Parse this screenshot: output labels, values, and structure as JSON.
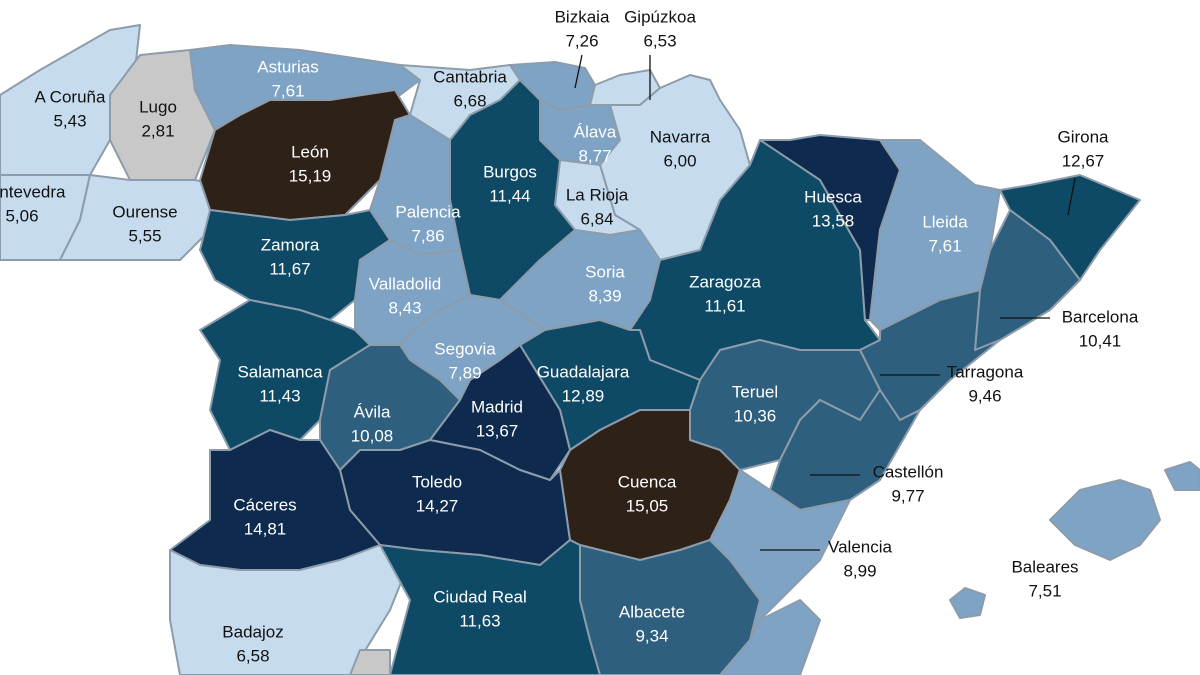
{
  "provinces": [
    {
      "name": "A Coruña",
      "value": "5,43",
      "color": "#c6dcee"
    },
    {
      "name": "Lugo",
      "value": "2,81",
      "color": "#c8c8c8"
    },
    {
      "name": "Pontevedra",
      "value": "5,06",
      "color": "#c6dcee"
    },
    {
      "name": "Ourense",
      "value": "5,55",
      "color": "#c6dcee"
    },
    {
      "name": "Asturias",
      "value": "7,61",
      "color": "#7ea3c5"
    },
    {
      "name": "Cantabria",
      "value": "6,68",
      "color": "#c6dcee"
    },
    {
      "name": "León",
      "value": "15,19",
      "color": "#2e2118"
    },
    {
      "name": "Bizkaia",
      "value": "7,26",
      "color": "#7ea3c5"
    },
    {
      "name": "Gipúzkoa",
      "value": "6,53",
      "color": "#c6dcee"
    },
    {
      "name": "Álava",
      "value": "8,77",
      "color": "#7ea3c5"
    },
    {
      "name": "Navarra",
      "value": "6,00",
      "color": "#c6dcee"
    },
    {
      "name": "La Rioja",
      "value": "6,84",
      "color": "#c6dcee"
    },
    {
      "name": "Burgos",
      "value": "11,44",
      "color": "#0e4a66"
    },
    {
      "name": "Palencia",
      "value": "7,86",
      "color": "#7ea3c5"
    },
    {
      "name": "Zamora",
      "value": "11,67",
      "color": "#0e4a66"
    },
    {
      "name": "Valladolid",
      "value": "8,43",
      "color": "#7ea3c5"
    },
    {
      "name": "Soria",
      "value": "8,39",
      "color": "#7ea3c5"
    },
    {
      "name": "Segovia",
      "value": "7,89",
      "color": "#7ea3c5"
    },
    {
      "name": "Zaragoza",
      "value": "11,61",
      "color": "#0e4a66"
    },
    {
      "name": "Huesca",
      "value": "13,58",
      "color": "#0e2a4e"
    },
    {
      "name": "Lleida",
      "value": "7,61",
      "color": "#7ea3c5"
    },
    {
      "name": "Girona",
      "value": "12,67",
      "color": "#0e4a66"
    },
    {
      "name": "Barcelona",
      "value": "10,41",
      "color": "#2f5f7e"
    },
    {
      "name": "Tarragona",
      "value": "9,46",
      "color": "#2f5f7e"
    },
    {
      "name": "Guadalajara",
      "value": "12,89",
      "color": "#0e4a66"
    },
    {
      "name": "Teruel",
      "value": "10,36",
      "color": "#2f5f7e"
    },
    {
      "name": "Castellón",
      "value": "9,77",
      "color": "#2f5f7e"
    },
    {
      "name": "Salamanca",
      "value": "11,43",
      "color": "#0e4a66"
    },
    {
      "name": "Ávila",
      "value": "10,08",
      "color": "#2f5f7e"
    },
    {
      "name": "Madrid",
      "value": "13,67",
      "color": "#0e2a4e"
    },
    {
      "name": "Toledo",
      "value": "14,27",
      "color": "#0e2a4e"
    },
    {
      "name": "Cuenca",
      "value": "15,05",
      "color": "#2e2118"
    },
    {
      "name": "Cáceres",
      "value": "14,81",
      "color": "#0e2a4e"
    },
    {
      "name": "Badajoz",
      "value": "6,58",
      "color": "#c6dcee"
    },
    {
      "name": "Ciudad Real",
      "value": "11,63",
      "color": "#0e4a66"
    },
    {
      "name": "Albacete",
      "value": "9,34",
      "color": "#2f5f7e"
    },
    {
      "name": "Valencia",
      "value": "8,99",
      "color": "#7ea3c5"
    },
    {
      "name": "Baleares",
      "value": "7,51",
      "color": "#7ea3c5"
    }
  ]
}
